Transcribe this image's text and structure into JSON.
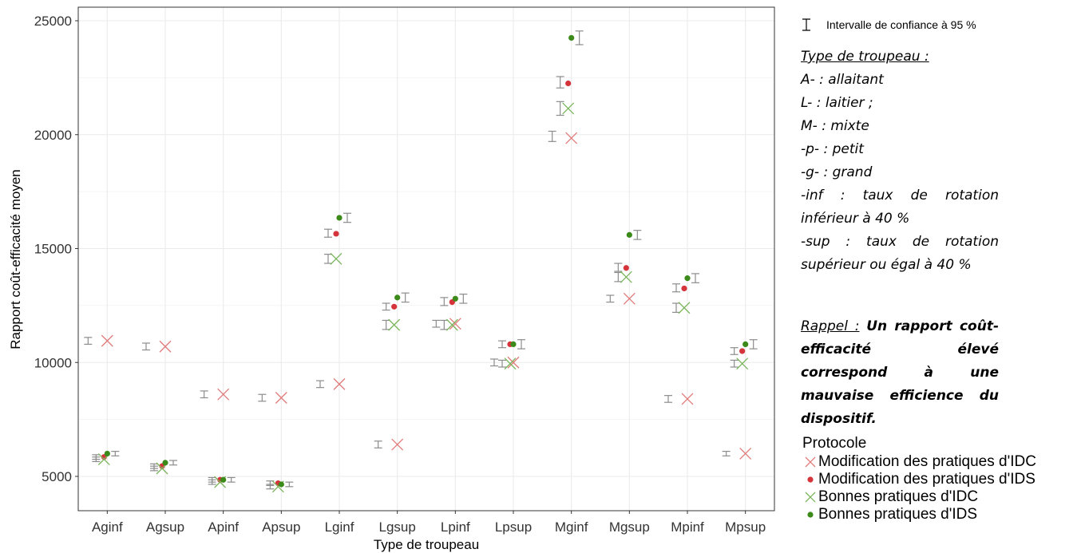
{
  "chart_data": {
    "type": "scatter",
    "xlabel": "Type de troupeau",
    "ylabel": "Rapport coût-efficacité moyen",
    "ylim": [
      4200,
      26000
    ],
    "yticks": [
      5000,
      10000,
      15000,
      20000,
      25000
    ],
    "grid": true,
    "categories": [
      "Aginf",
      "Agsup",
      "Apinf",
      "Apsup",
      "Lginf",
      "Lgsup",
      "Lpinf",
      "Lpsup",
      "Mginf",
      "Mgsup",
      "Mpinf",
      "Mpsup"
    ],
    "series": [
      {
        "name": "Modification des pratiques d'IDC",
        "marker": "x",
        "color": "#e07b7b",
        "values": [
          10950,
          10700,
          8600,
          8450,
          9050,
          6400,
          11700,
          10000,
          19850,
          12800,
          8400,
          6000
        ],
        "ci": [
          [
            10800,
            11100
          ],
          [
            10550,
            10850
          ],
          [
            8450,
            8750
          ],
          [
            8300,
            8600
          ],
          [
            8900,
            9200
          ],
          [
            6250,
            6550
          ],
          [
            11550,
            11850
          ],
          [
            9850,
            10150
          ],
          [
            19700,
            20150
          ],
          [
            12650,
            12950
          ],
          [
            8250,
            8550
          ],
          [
            5900,
            6100
          ]
        ]
      },
      {
        "name": "Modification des pratiques d'IDS",
        "marker": "dot",
        "color": "#d6343b",
        "values": [
          5850,
          5450,
          4850,
          4700,
          15650,
          12450,
          12650,
          10800,
          22250,
          14150,
          13250,
          10500
        ],
        "ci": [
          [
            5750,
            5950
          ],
          [
            5350,
            5550
          ],
          [
            4750,
            4950
          ],
          [
            4600,
            4800
          ],
          [
            15500,
            15850
          ],
          [
            12300,
            12600
          ],
          [
            12500,
            12850
          ],
          [
            10650,
            10950
          ],
          [
            22050,
            22550
          ],
          [
            14000,
            14350
          ],
          [
            13100,
            13450
          ],
          [
            10350,
            10650
          ]
        ]
      },
      {
        "name": "Bonnes pratiques d'IDC",
        "marker": "x",
        "color": "#7ab55c",
        "values": [
          5750,
          5350,
          4750,
          4550,
          14550,
          11650,
          11650,
          9950,
          21150,
          13750,
          12400,
          9950
        ],
        "ci": [
          [
            5650,
            5850
          ],
          [
            5250,
            5450
          ],
          [
            4650,
            4850
          ],
          [
            4450,
            4650
          ],
          [
            14350,
            14750
          ],
          [
            11450,
            11850
          ],
          [
            11450,
            11850
          ],
          [
            9800,
            10100
          ],
          [
            20850,
            21450
          ],
          [
            13550,
            13950
          ],
          [
            12200,
            12600
          ],
          [
            9800,
            10100
          ]
        ]
      },
      {
        "name": "Bonnes pratiques d'IDS",
        "marker": "dot",
        "color": "#3b8a1a",
        "values": [
          6000,
          5600,
          4850,
          4650,
          16350,
          12850,
          12800,
          10800,
          24250,
          15600,
          13700,
          10800
        ],
        "ci": [
          [
            5900,
            6100
          ],
          [
            5500,
            5700
          ],
          [
            4750,
            4950
          ],
          [
            4550,
            4750
          ],
          [
            16150,
            16550
          ],
          [
            12650,
            13050
          ],
          [
            12600,
            13000
          ],
          [
            10600,
            11000
          ],
          [
            23950,
            24550
          ],
          [
            15400,
            15800
          ],
          [
            13500,
            13900
          ],
          [
            10600,
            11000
          ]
        ]
      }
    ],
    "legend": {
      "title": "Protocole",
      "placement": "bottom-right"
    }
  },
  "ci_legend": "Intervalle de confiance à 95 %",
  "notes": {
    "title": "Type de troupeau :",
    "lines": [
      "A- : allaitant",
      "L- : laitier ;",
      "M- : mixte",
      "-p- : petit",
      "-g- : grand"
    ],
    "inf": "-inf : taux de rotation inférieur à 40 %",
    "sup": "-sup : taux de rotation supérieur ou égal à 40 %"
  },
  "rappel": {
    "label": "Rappel :",
    "text": "Un rapport coût-efficacité élevé correspond à une mauvaise efficience du dispositif."
  },
  "colors": {
    "panel_border": "#333333",
    "grid": "#ebebeb",
    "ci": "#8c8c8c"
  }
}
